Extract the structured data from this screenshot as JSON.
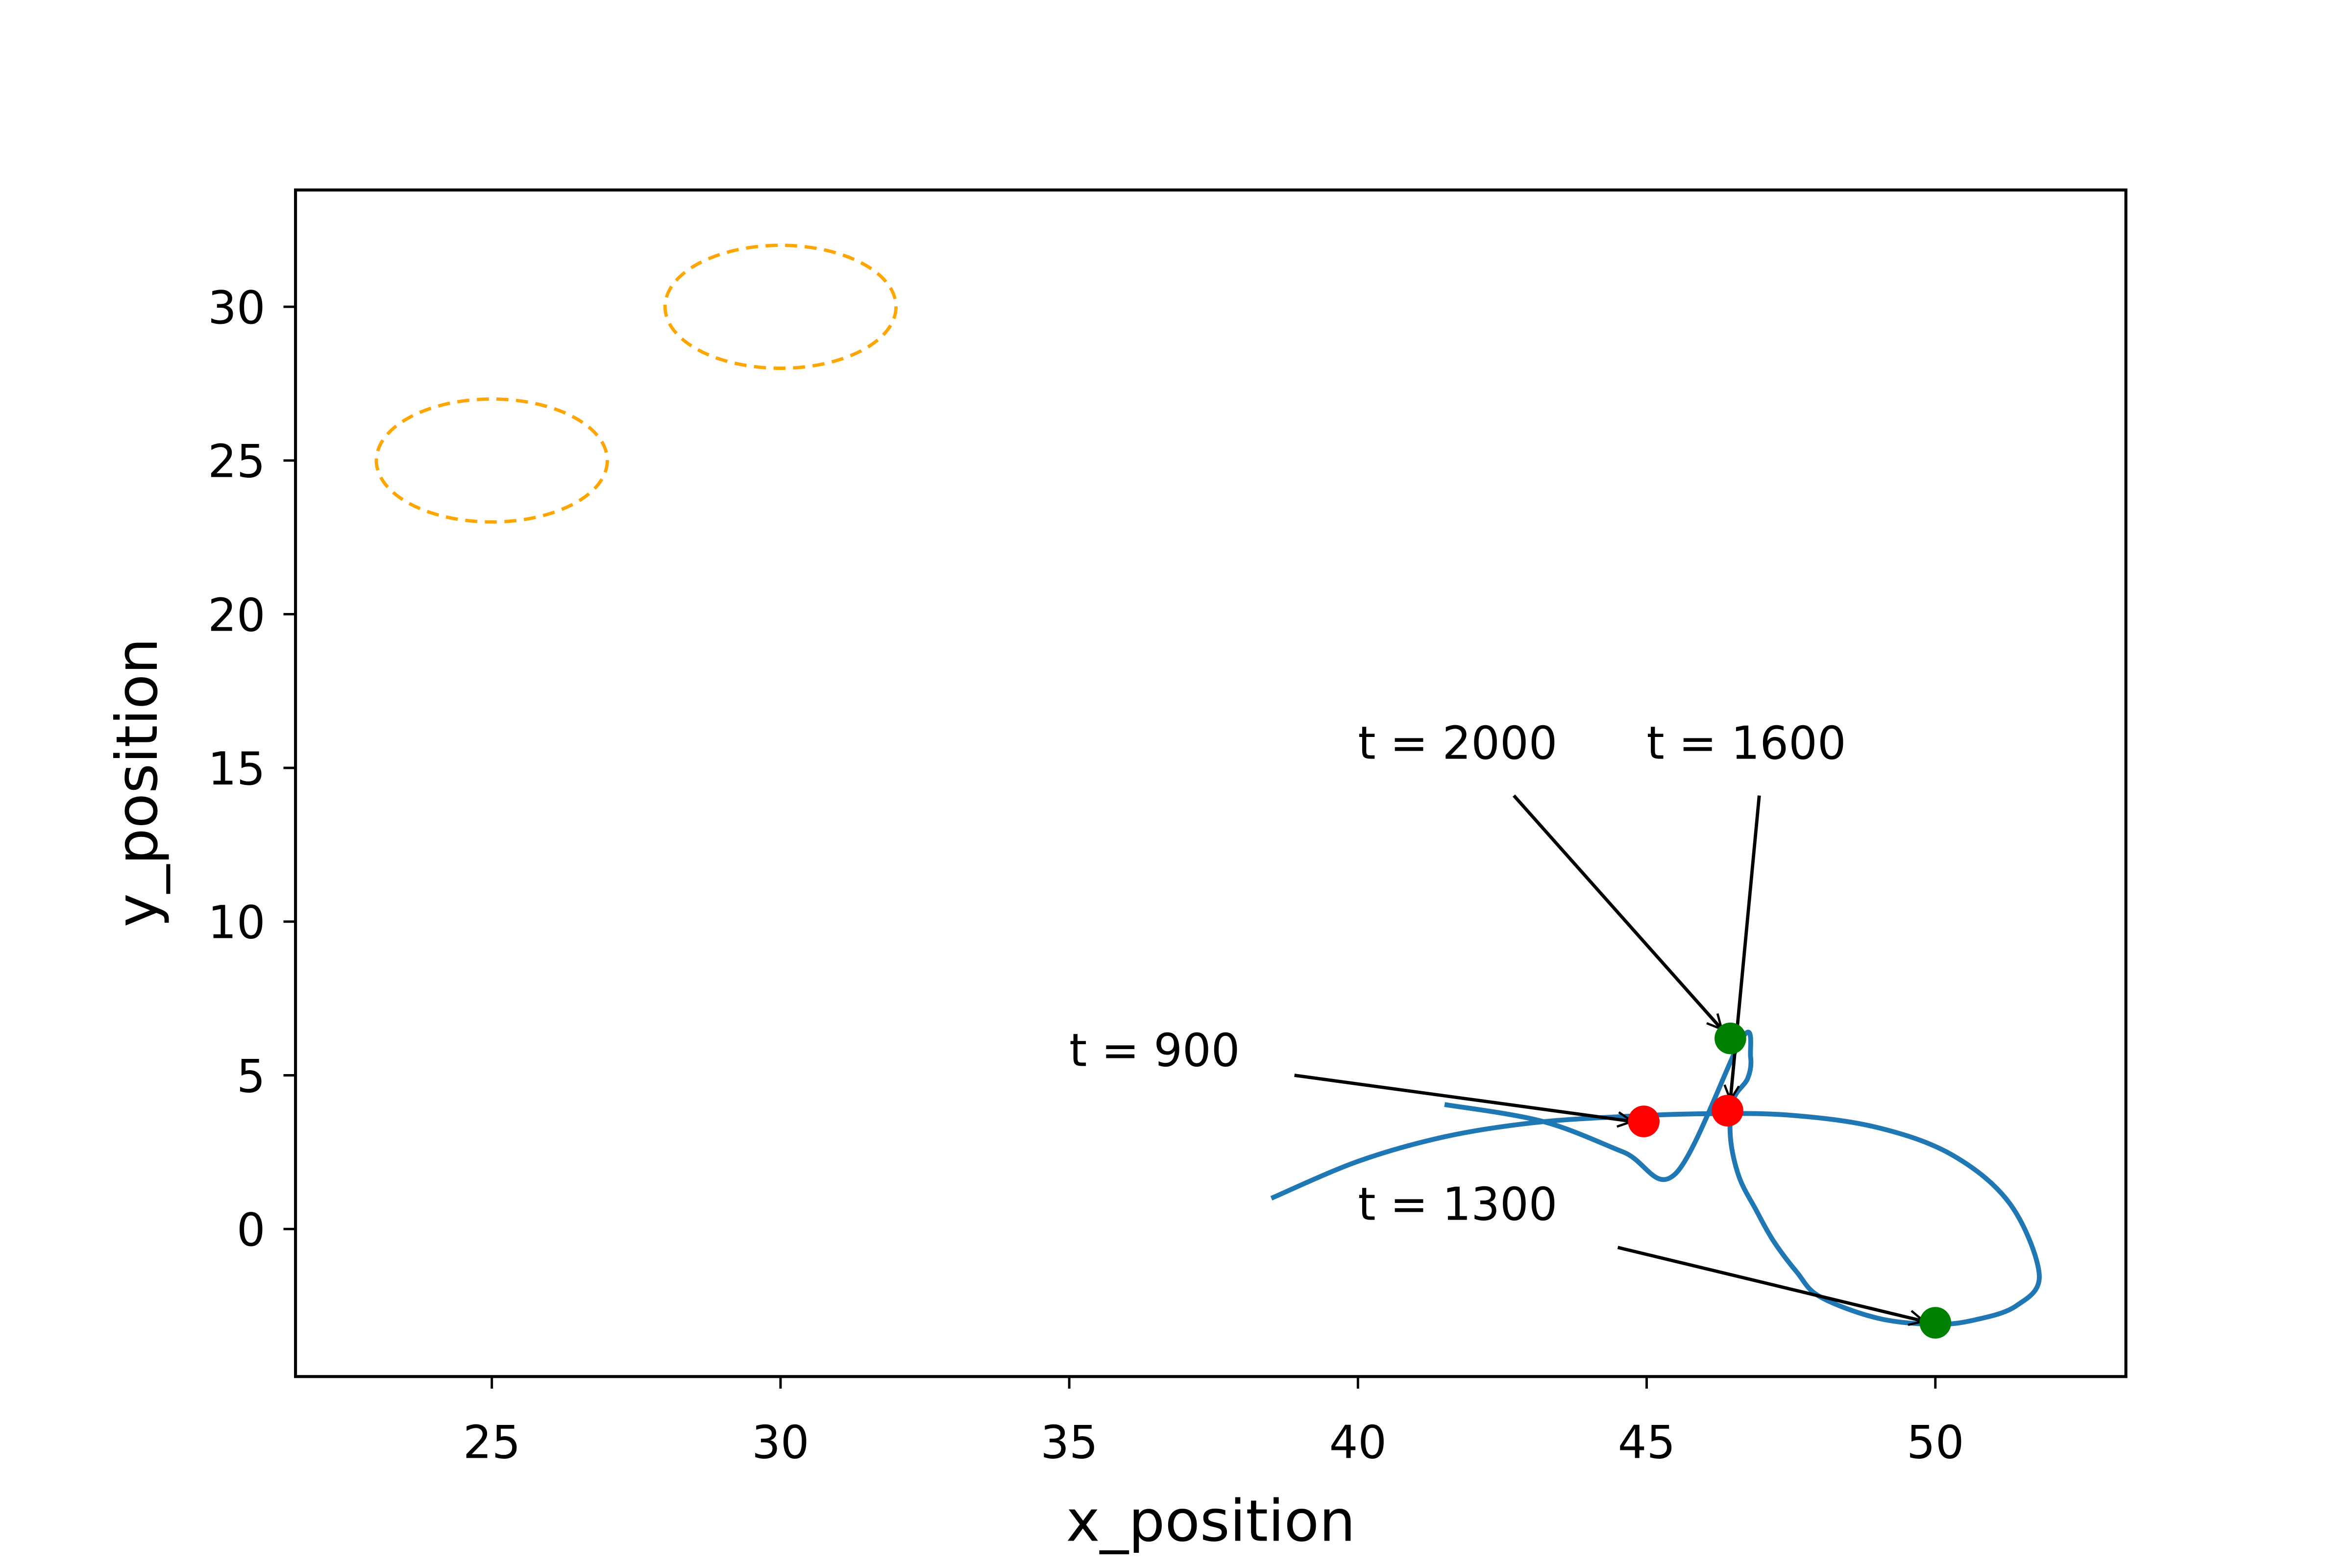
{
  "chart_data": {
    "type": "line",
    "title": "",
    "xlabel": "x_position",
    "ylabel": "y_position",
    "xlim": [
      21.6,
      53.3
    ],
    "ylim": [
      -4.8,
      33.8
    ],
    "xticks": [
      25,
      30,
      35,
      40,
      45,
      50
    ],
    "yticks": [
      0,
      5,
      10,
      15,
      20,
      25,
      30
    ],
    "grid": false,
    "colors": {
      "trajectory": "#1f77b4",
      "obstacle": "#ffa500",
      "marker_red": "#ff0000",
      "marker_green": "#008000",
      "axes": "#000000"
    },
    "series": [
      {
        "kind": "trajectory",
        "x": [
          38.5,
          40.0,
          41.5,
          43.0,
          44.5,
          46.0,
          47.5,
          49.0,
          50.3,
          51.3,
          51.8,
          51.4,
          50.7,
          50.0,
          49.0,
          48.0,
          47.6,
          47.2,
          46.9,
          46.6,
          46.45,
          46.5,
          46.75,
          46.8,
          46.65,
          45.5,
          44.6,
          43.2,
          41.5
        ],
        "y": [
          1.0,
          2.2,
          3.0,
          3.45,
          3.65,
          3.75,
          3.7,
          3.3,
          2.4,
          0.8,
          -1.5,
          -2.5,
          -2.95,
          -3.1,
          -2.9,
          -2.2,
          -1.4,
          -0.4,
          0.6,
          1.7,
          3.0,
          4.2,
          4.9,
          5.6,
          6.2,
          1.8,
          2.5,
          3.5,
          4.05
        ]
      }
    ],
    "obstacles": [
      {
        "cx": 25,
        "cy": 25,
        "rx": 2,
        "ry": 2
      },
      {
        "cx": 30,
        "cy": 30,
        "rx": 2,
        "ry": 2
      }
    ],
    "markers": [
      {
        "x": 44.95,
        "y": 3.5,
        "color": "red"
      },
      {
        "x": 46.4,
        "y": 3.85,
        "color": "red"
      },
      {
        "x": 46.45,
        "y": 6.2,
        "color": "green"
      },
      {
        "x": 50.0,
        "y": -3.05,
        "color": "green"
      }
    ],
    "annotations": [
      {
        "text": "t = 900",
        "text_x": 35.0,
        "text_y": 5.3,
        "tail_x": 38.9,
        "tail_y": 5.0,
        "target_x": 44.75,
        "target_y": 3.5
      },
      {
        "text": "t = 2000",
        "text_x": 40.0,
        "text_y": 15.3,
        "tail_x": 42.7,
        "tail_y": 14.1,
        "target_x": 46.3,
        "target_y": 6.5
      },
      {
        "text": "t = 1600",
        "text_x": 45.0,
        "text_y": 15.3,
        "tail_x": 46.95,
        "tail_y": 14.1,
        "target_x": 46.45,
        "target_y": 4.2
      },
      {
        "text": "t = 1300",
        "text_x": 40.0,
        "text_y": 0.3,
        "tail_x": 44.5,
        "tail_y": -0.6,
        "target_x": 49.8,
        "target_y": -3.0
      }
    ]
  }
}
